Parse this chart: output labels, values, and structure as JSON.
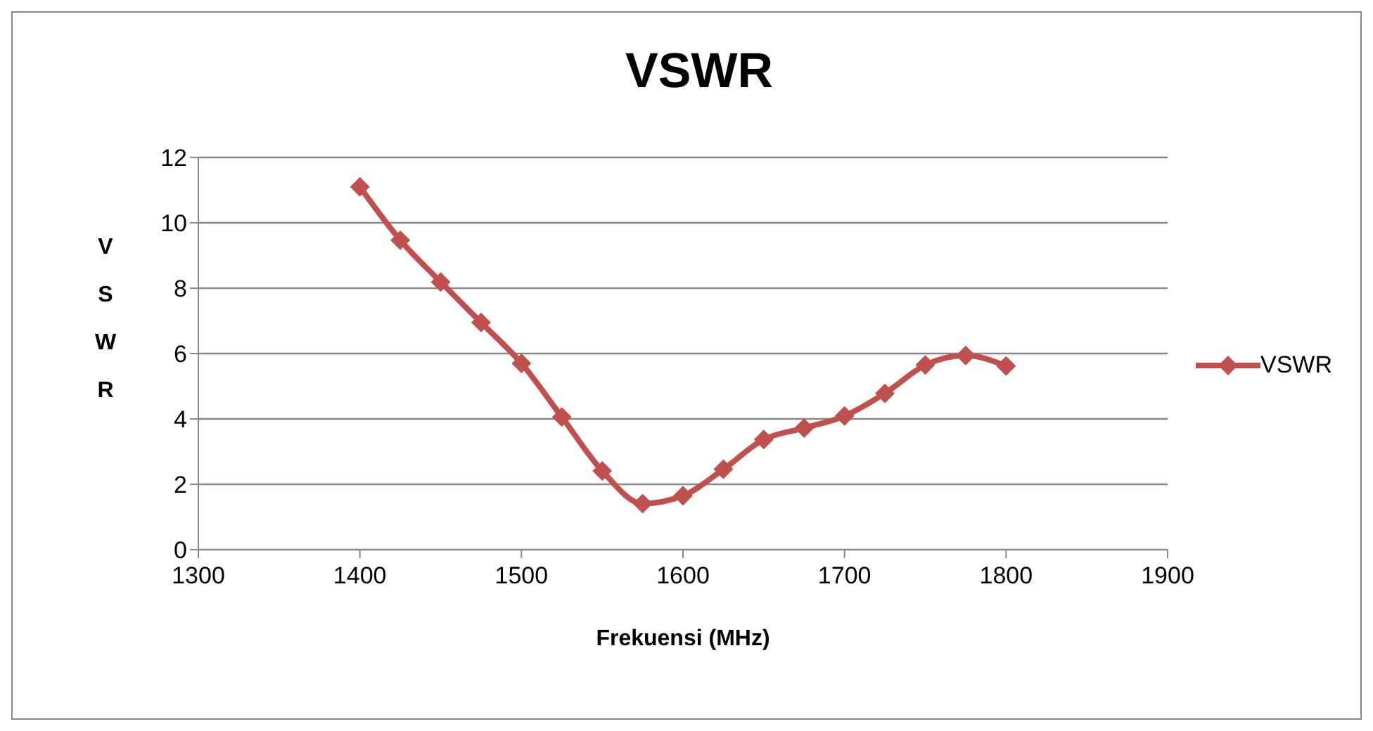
{
  "chart_data": {
    "type": "line",
    "title": "VSWR",
    "xlabel": "Frekuensi (MHz)",
    "ylabel": "VSWR",
    "x": [
      1400,
      1425,
      1450,
      1475,
      1500,
      1525,
      1550,
      1575,
      1600,
      1625,
      1650,
      1675,
      1700,
      1725,
      1750,
      1775,
      1800
    ],
    "series": [
      {
        "name": "VSWR",
        "color": "#c0504d",
        "values": [
          11.1,
          9.47,
          8.19,
          6.95,
          5.7,
          4.06,
          2.41,
          1.41,
          1.65,
          2.46,
          3.37,
          3.72,
          4.09,
          4.78,
          5.65,
          5.94,
          5.62
        ]
      }
    ],
    "xlim": [
      1300,
      1900
    ],
    "xticks": [
      1300,
      1400,
      1500,
      1600,
      1700,
      1800,
      1900
    ],
    "ylim": [
      0,
      12
    ],
    "yticks": [
      0,
      2,
      4,
      6,
      8,
      10,
      12
    ],
    "grid": "y",
    "legend": "right",
    "marker": "diamond",
    "line_style": "solid"
  }
}
